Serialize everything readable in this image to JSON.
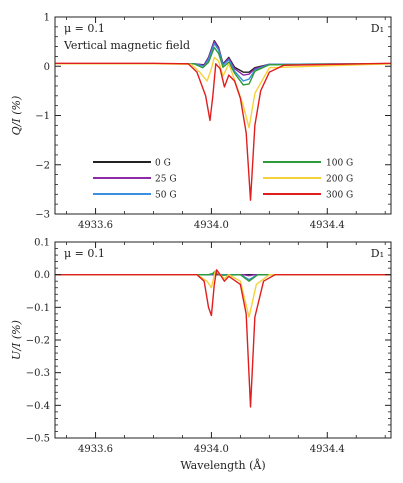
{
  "chart_data": [
    {
      "type": "line",
      "panel": "top",
      "xlim": [
        4933.46,
        4934.62
      ],
      "ylim": [
        -3,
        1
      ],
      "xticks": [
        4933.6,
        4934.0,
        4934.4
      ],
      "xtick_labels": [
        "4933.6",
        "4934.0",
        "4934.4"
      ],
      "yticks": [
        1,
        0,
        -1,
        -2,
        -3
      ],
      "ytick_labels": [
        "1",
        "0",
        "−1",
        "−2",
        "−3"
      ],
      "ylabel": "Q/I (%)",
      "xlabel": "",
      "annotations": {
        "mu": "μ = 0.1",
        "field": "Vertical magnetic field",
        "line": "D₁"
      },
      "legend": {
        "placement": "lower-center",
        "entries": [
          {
            "label": "0 G",
            "color": "#222222"
          },
          {
            "label": "25 G",
            "color": "#8e2aa8"
          },
          {
            "label": "50 G",
            "color": "#3a8fe0"
          },
          {
            "label": "100 G",
            "color": "#2f9a3a"
          },
          {
            "label": "200 G",
            "color": "#f5d23a"
          },
          {
            "label": "300 G",
            "color": "#e01e1e"
          }
        ]
      },
      "series": [
        {
          "name": "0 G",
          "color": "#222222",
          "values": [
            [
              4933.46,
              0.05
            ],
            [
              4933.8,
              0.05
            ],
            [
              4933.94,
              0.05
            ],
            [
              4933.975,
              0.03
            ],
            [
              4933.99,
              0.18
            ],
            [
              4934.01,
              0.52
            ],
            [
              4934.025,
              0.38
            ],
            [
              4934.04,
              0.05
            ],
            [
              4934.06,
              0.18
            ],
            [
              4934.08,
              -0.02
            ],
            [
              4934.11,
              -0.12
            ],
            [
              4934.13,
              -0.12
            ],
            [
              4934.15,
              -0.03
            ],
            [
              4934.2,
              0.04
            ],
            [
              4934.62,
              0.05
            ]
          ]
        },
        {
          "name": "25 G",
          "color": "#8e2aa8",
          "values": [
            [
              4933.46,
              0.05
            ],
            [
              4933.8,
              0.05
            ],
            [
              4933.94,
              0.05
            ],
            [
              4933.975,
              0.02
            ],
            [
              4933.99,
              0.17
            ],
            [
              4934.01,
              0.5
            ],
            [
              4934.025,
              0.36
            ],
            [
              4934.04,
              0.04
            ],
            [
              4934.06,
              0.16
            ],
            [
              4934.08,
              -0.05
            ],
            [
              4934.11,
              -0.18
            ],
            [
              4934.13,
              -0.16
            ],
            [
              4934.15,
              -0.05
            ],
            [
              4934.2,
              0.04
            ],
            [
              4934.62,
              0.05
            ]
          ]
        },
        {
          "name": "50 G",
          "color": "#3a8fe0",
          "values": [
            [
              4933.46,
              0.05
            ],
            [
              4933.8,
              0.05
            ],
            [
              4933.94,
              0.05
            ],
            [
              4933.975,
              0.0
            ],
            [
              4933.99,
              0.14
            ],
            [
              4934.01,
              0.46
            ],
            [
              4934.025,
              0.33
            ],
            [
              4934.04,
              0.02
            ],
            [
              4934.06,
              0.13
            ],
            [
              4934.08,
              -0.1
            ],
            [
              4934.11,
              -0.3
            ],
            [
              4934.13,
              -0.26
            ],
            [
              4934.15,
              -0.08
            ],
            [
              4934.2,
              0.04
            ],
            [
              4934.62,
              0.05
            ]
          ]
        },
        {
          "name": "100 G",
          "color": "#2f9a3a",
          "values": [
            [
              4933.46,
              0.05
            ],
            [
              4933.8,
              0.05
            ],
            [
              4933.94,
              0.05
            ],
            [
              4933.97,
              -0.03
            ],
            [
              4933.99,
              0.08
            ],
            [
              4934.01,
              0.38
            ],
            [
              4934.025,
              0.26
            ],
            [
              4934.04,
              -0.02
            ],
            [
              4934.06,
              0.08
            ],
            [
              4934.08,
              -0.14
            ],
            [
              4934.11,
              -0.38
            ],
            [
              4934.13,
              -0.36
            ],
            [
              4934.15,
              -0.1
            ],
            [
              4934.2,
              0.03
            ],
            [
              4934.62,
              0.05
            ]
          ]
        },
        {
          "name": "200 G",
          "color": "#f5d23a",
          "values": [
            [
              4933.46,
              0.05
            ],
            [
              4933.8,
              0.05
            ],
            [
              4933.93,
              0.04
            ],
            [
              4933.96,
              -0.12
            ],
            [
              4933.985,
              -0.3
            ],
            [
              4934.0,
              -0.05
            ],
            [
              4934.01,
              0.18
            ],
            [
              4934.025,
              0.1
            ],
            [
              4934.04,
              -0.2
            ],
            [
              4934.06,
              0.05
            ],
            [
              4934.08,
              -0.28
            ],
            [
              4934.11,
              -0.8
            ],
            [
              4934.13,
              -1.25
            ],
            [
              4934.15,
              -0.55
            ],
            [
              4934.2,
              -0.03
            ],
            [
              4934.62,
              0.05
            ]
          ]
        },
        {
          "name": "300 G",
          "color": "#e01e1e",
          "values": [
            [
              4933.46,
              0.06
            ],
            [
              4933.8,
              0.06
            ],
            [
              4933.92,
              0.05
            ],
            [
              4933.95,
              -0.12
            ],
            [
              4933.98,
              -0.6
            ],
            [
              4933.995,
              -1.1
            ],
            [
              4934.005,
              -0.6
            ],
            [
              4934.015,
              0.05
            ],
            [
              4934.03,
              -0.05
            ],
            [
              4934.045,
              -0.42
            ],
            [
              4934.06,
              -0.18
            ],
            [
              4934.08,
              -0.3
            ],
            [
              4934.1,
              -0.65
            ],
            [
              4934.12,
              -1.35
            ],
            [
              4934.135,
              -2.72
            ],
            [
              4934.15,
              -1.2
            ],
            [
              4934.17,
              -0.5
            ],
            [
              4934.2,
              -0.12
            ],
            [
              4934.25,
              0.02
            ],
            [
              4934.62,
              0.06
            ]
          ]
        }
      ]
    },
    {
      "type": "line",
      "panel": "bottom",
      "xlim": [
        4933.46,
        4934.62
      ],
      "ylim": [
        -0.5,
        0.1
      ],
      "xticks": [
        4933.6,
        4934.0,
        4934.4
      ],
      "xtick_labels": [
        "4933.6",
        "4934.0",
        "4934.4"
      ],
      "yticks": [
        0.1,
        0.0,
        -0.1,
        -0.2,
        -0.3,
        -0.4,
        -0.5
      ],
      "ytick_labels": [
        "0.1",
        "0.0",
        "−0.1",
        "−0.2",
        "−0.3",
        "−0.4",
        "−0.5"
      ],
      "ylabel": "U/I (%)",
      "xlabel": "Wavelength (Å)",
      "annotations": {
        "mu": "μ = 0.1",
        "line": "D₁"
      },
      "series": [
        {
          "name": "0 G",
          "color": "#222222",
          "values": [
            [
              4933.46,
              0.0
            ],
            [
              4934.62,
              0.0
            ]
          ]
        },
        {
          "name": "25 G",
          "color": "#8e2aa8",
          "values": [
            [
              4933.46,
              0.0
            ],
            [
              4934.0,
              0.0
            ],
            [
              4934.015,
              0.003
            ],
            [
              4934.03,
              0.0
            ],
            [
              4934.11,
              0.0
            ],
            [
              4934.13,
              -0.003
            ],
            [
              4934.15,
              0.0
            ],
            [
              4934.62,
              0.0
            ]
          ]
        },
        {
          "name": "50 G",
          "color": "#3a8fe0",
          "values": [
            [
              4933.46,
              0.0
            ],
            [
              4934.0,
              0.0
            ],
            [
              4934.015,
              0.008
            ],
            [
              4934.03,
              0.0
            ],
            [
              4934.1,
              0.0
            ],
            [
              4934.13,
              -0.015
            ],
            [
              4934.16,
              0.0
            ],
            [
              4934.62,
              0.0
            ]
          ]
        },
        {
          "name": "100 G",
          "color": "#2f9a3a",
          "values": [
            [
              4933.46,
              0.0
            ],
            [
              4933.99,
              0.0
            ],
            [
              4934.005,
              0.004
            ],
            [
              4934.015,
              0.012
            ],
            [
              4934.03,
              -0.002
            ],
            [
              4934.1,
              0.0
            ],
            [
              4934.13,
              -0.02
            ],
            [
              4934.16,
              0.0
            ],
            [
              4934.62,
              0.0
            ]
          ]
        },
        {
          "name": "200 G",
          "color": "#f5d23a",
          "values": [
            [
              4933.46,
              0.0
            ],
            [
              4933.95,
              0.0
            ],
            [
              4933.985,
              -0.02
            ],
            [
              4934.0,
              -0.04
            ],
            [
              4934.01,
              0.0
            ],
            [
              4934.015,
              0.012
            ],
            [
              4934.03,
              0.0
            ],
            [
              4934.045,
              -0.012
            ],
            [
              4934.06,
              0.0
            ],
            [
              4934.1,
              -0.02
            ],
            [
              4934.13,
              -0.13
            ],
            [
              4934.155,
              -0.03
            ],
            [
              4934.2,
              0.0
            ],
            [
              4934.62,
              0.0
            ]
          ]
        },
        {
          "name": "300 G",
          "color": "#e01e1e",
          "values": [
            [
              4933.46,
              0.0
            ],
            [
              4933.95,
              0.0
            ],
            [
              4933.975,
              -0.02
            ],
            [
              4933.99,
              -0.1
            ],
            [
              4934.0,
              -0.125
            ],
            [
              4934.01,
              -0.03
            ],
            [
              4934.018,
              0.015
            ],
            [
              4934.03,
              0.0
            ],
            [
              4934.045,
              -0.02
            ],
            [
              4934.06,
              -0.005
            ],
            [
              4934.1,
              -0.03
            ],
            [
              4934.12,
              -0.12
            ],
            [
              4934.135,
              -0.405
            ],
            [
              4934.15,
              -0.13
            ],
            [
              4934.18,
              -0.02
            ],
            [
              4934.22,
              0.0
            ],
            [
              4934.62,
              0.0
            ]
          ]
        }
      ]
    }
  ]
}
